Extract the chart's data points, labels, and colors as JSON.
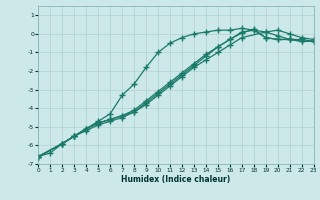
{
  "xlabel": "Humidex (Indice chaleur)",
  "bg_color": "#cce8e8",
  "grid_color": "#b0d0d0",
  "line_color": "#1a7a6a",
  "xlim": [
    0,
    23
  ],
  "ylim": [
    -7,
    1.5
  ],
  "xticks": [
    0,
    1,
    2,
    3,
    4,
    5,
    6,
    7,
    8,
    9,
    10,
    11,
    12,
    13,
    14,
    15,
    16,
    17,
    18,
    19,
    20,
    21,
    22,
    23
  ],
  "yticks": [
    -7,
    -6,
    -5,
    -4,
    -3,
    -2,
    -1,
    0,
    1
  ],
  "line1_x": [
    0,
    1,
    2,
    3,
    4,
    5,
    6,
    7,
    8,
    9,
    10,
    11,
    12,
    13,
    14,
    15,
    16,
    17,
    18,
    19,
    20,
    21,
    22,
    23
  ],
  "line1_y": [
    -6.6,
    -6.4,
    -5.9,
    -5.5,
    -5.1,
    -4.7,
    -4.3,
    -3.3,
    -2.7,
    -1.8,
    -1.0,
    -0.5,
    -0.2,
    0.0,
    0.1,
    0.2,
    0.2,
    0.3,
    0.2,
    0.1,
    -0.1,
    -0.3,
    -0.4,
    -0.4
  ],
  "line2_x": [
    0,
    2,
    3,
    4,
    5,
    6,
    7,
    8,
    9,
    10,
    11,
    12,
    13,
    14,
    15,
    16,
    17,
    19,
    20,
    21,
    22,
    23
  ],
  "line2_y": [
    -6.6,
    -5.9,
    -5.5,
    -5.2,
    -4.9,
    -4.7,
    -4.5,
    -4.2,
    -3.8,
    -3.3,
    -2.8,
    -2.3,
    -1.8,
    -1.4,
    -1.0,
    -0.6,
    -0.2,
    0.1,
    0.2,
    0.0,
    -0.2,
    -0.3
  ],
  "line3_x": [
    0,
    2,
    3,
    4,
    5,
    6,
    7,
    8,
    9,
    10,
    11,
    12,
    13,
    14,
    15,
    16,
    17,
    18,
    19,
    20,
    21,
    22,
    23
  ],
  "line3_y": [
    -6.6,
    -5.9,
    -5.5,
    -5.1,
    -4.8,
    -4.6,
    -4.4,
    -4.1,
    -3.6,
    -3.1,
    -2.6,
    -2.1,
    -1.6,
    -1.1,
    -0.7,
    -0.3,
    0.1,
    0.2,
    -0.2,
    -0.3,
    -0.3,
    -0.3,
    -0.4
  ],
  "line4_x": [
    0,
    2,
    3,
    4,
    5,
    6,
    7,
    8,
    9,
    10,
    11,
    12,
    13,
    14,
    15,
    16,
    17,
    18,
    19,
    20,
    21,
    22,
    23
  ],
  "line4_y": [
    -6.6,
    -5.9,
    -5.5,
    -5.1,
    -4.8,
    -4.6,
    -4.4,
    -4.2,
    -3.7,
    -3.2,
    -2.7,
    -2.2,
    -1.7,
    -1.2,
    -0.7,
    -0.3,
    0.05,
    0.25,
    -0.2,
    -0.3,
    -0.3,
    -0.4,
    -0.4
  ]
}
